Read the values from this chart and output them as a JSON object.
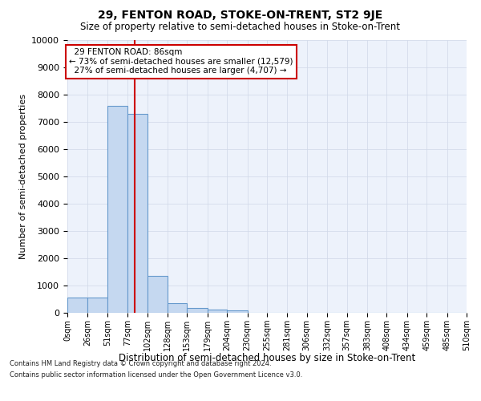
{
  "title": "29, FENTON ROAD, STOKE-ON-TRENT, ST2 9JE",
  "subtitle": "Size of property relative to semi-detached houses in Stoke-on-Trent",
  "xlabel": "Distribution of semi-detached houses by size in Stoke-on-Trent",
  "ylabel": "Number of semi-detached properties",
  "property_label": "29 FENTON ROAD: 86sqm",
  "pct_smaller": 73,
  "pct_larger": 27,
  "n_smaller": "12,579",
  "n_larger": "4,707",
  "bin_edges": [
    0,
    26,
    51,
    77,
    102,
    128,
    153,
    179,
    204,
    230,
    255,
    281,
    306,
    332,
    357,
    383,
    408,
    434,
    459,
    485,
    510
  ],
  "bar_heights": [
    550,
    550,
    7600,
    7300,
    1350,
    350,
    175,
    125,
    100,
    0,
    0,
    0,
    0,
    0,
    0,
    0,
    0,
    0,
    0,
    0
  ],
  "bar_color": "#c5d8f0",
  "bar_edge_color": "#6699cc",
  "vline_x": 86,
  "vline_color": "#cc0000",
  "annotation_box_color": "#cc0000",
  "ylim": [
    0,
    10000
  ],
  "yticks": [
    0,
    1000,
    2000,
    3000,
    4000,
    5000,
    6000,
    7000,
    8000,
    9000,
    10000
  ],
  "grid_color": "#d0d8e8",
  "background_color": "#edf2fb",
  "footer_line1": "Contains HM Land Registry data © Crown copyright and database right 2024.",
  "footer_line2": "Contains public sector information licensed under the Open Government Licence v3.0."
}
